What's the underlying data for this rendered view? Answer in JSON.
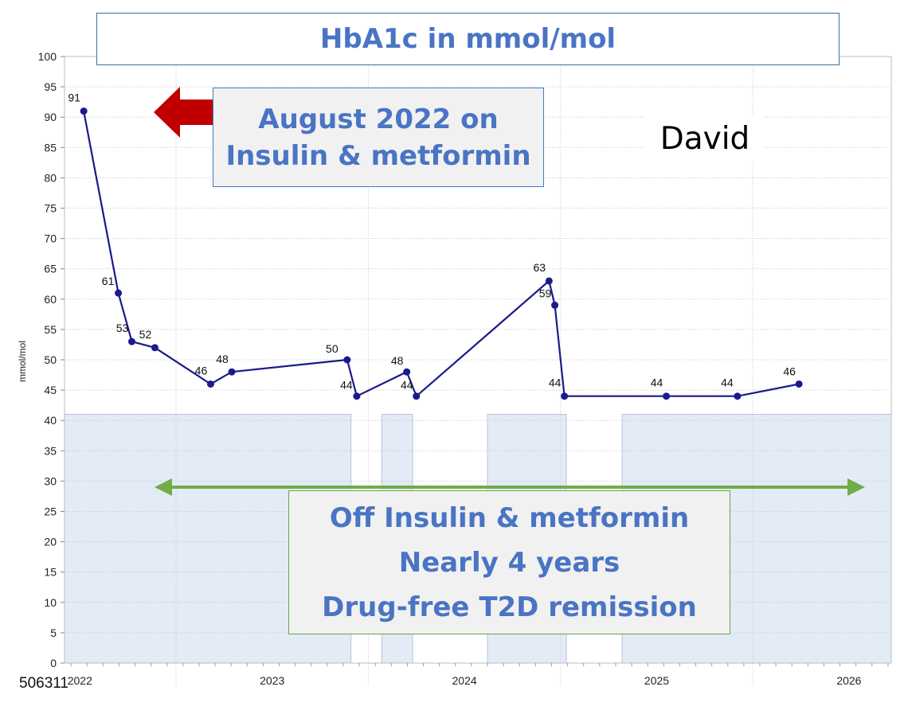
{
  "chart_data": {
    "type": "line",
    "title": "HbA1c in mmol/mol",
    "ylabel": "mmol/mol",
    "ylim": [
      0,
      100
    ],
    "yticks": [
      0,
      5,
      10,
      15,
      20,
      25,
      30,
      35,
      40,
      45,
      50,
      55,
      60,
      65,
      70,
      75,
      80,
      85,
      90,
      95,
      100
    ],
    "xlim": [
      2021.95,
      2026.25
    ],
    "xticks": [
      {
        "value": 2022.03,
        "label": "2022"
      },
      {
        "value": 2023.03,
        "label": "2023"
      },
      {
        "value": 2024.03,
        "label": "2024"
      },
      {
        "value": 2025.03,
        "label": "2025"
      },
      {
        "value": 2026.03,
        "label": "2026"
      }
    ],
    "series": [
      {
        "points": [
          {
            "x": 2022.05,
            "y": 91,
            "label": "91"
          },
          {
            "x": 2022.23,
            "y": 61,
            "label": "61"
          },
          {
            "x": 2022.3,
            "y": 53,
            "label": "53"
          },
          {
            "x": 2022.42,
            "y": 52,
            "label": "52"
          },
          {
            "x": 2022.71,
            "y": 46,
            "label": "46"
          },
          {
            "x": 2022.82,
            "y": 48,
            "label": "48"
          },
          {
            "x": 2023.42,
            "y": 50,
            "label": "50"
          },
          {
            "x": 2023.47,
            "y": 44,
            "label": "44"
          },
          {
            "x": 2023.73,
            "y": 48,
            "label": "48"
          },
          {
            "x": 2023.78,
            "y": 44,
            "label": "44"
          },
          {
            "x": 2024.47,
            "y": 63,
            "label": "63"
          },
          {
            "x": 2024.5,
            "y": 59,
            "label": "59"
          },
          {
            "x": 2024.55,
            "y": 44,
            "label": "44"
          },
          {
            "x": 2025.08,
            "y": 44,
            "label": "44"
          },
          {
            "x": 2025.45,
            "y": 44,
            "label": "44"
          },
          {
            "x": 2025.77,
            "y": 46,
            "label": "46"
          }
        ]
      }
    ],
    "shaded_periods": [
      {
        "x0": 2021.95,
        "x1": 2023.44,
        "y1": 41
      },
      {
        "x0": 2023.6,
        "x1": 2023.76,
        "y1": 41
      },
      {
        "x0": 2024.15,
        "x1": 2024.56,
        "y1": 41
      },
      {
        "x0": 2024.85,
        "x1": 2026.25,
        "y1": 41
      }
    ],
    "colors": {
      "line": "#1a1a8c",
      "shade": "#e3ebf7",
      "shade_border": "#b6c4dc",
      "grid": "#c8c8c8",
      "red_arrow": "#c00000",
      "green_arrow": "#70ad47",
      "callout_text": "#4a74c4"
    },
    "grid": true
  },
  "annotations": {
    "top_callout": [
      "August 2022 on",
      "Insulin & metformin"
    ],
    "bottom_callout": [
      "Off Insulin & metformin",
      "Nearly 4 years",
      "Drug-free T2D remission"
    ],
    "patient_name": "David",
    "image_id": "506311"
  }
}
